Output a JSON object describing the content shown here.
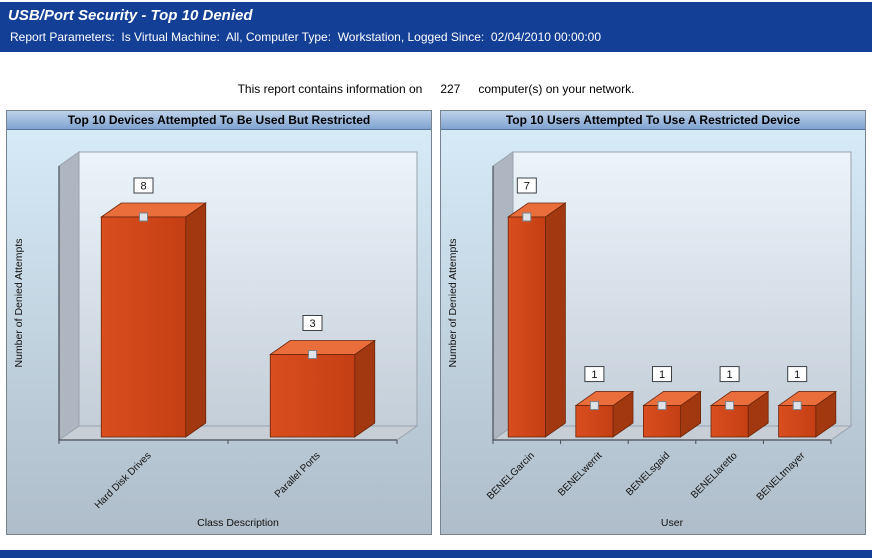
{
  "header": {
    "title": "USB/Port Security - Top 10 Denied",
    "parameters": "Report Parameters:  Is Virtual Machine:  All, Computer Type:  Workstation, Logged Since:  02/04/2010 00:00:00"
  },
  "summary": {
    "prefix": "This report contains information on",
    "count": "227",
    "suffix": "computer(s) on your network."
  },
  "colors": {
    "header_bg": "#143f96",
    "panel_title_from": "#bdd2ea",
    "panel_title_to": "#7fa3d0",
    "bar_front": "#d94e1f",
    "bar_front2": "#c43f14",
    "bar_top": "#ea6e3c",
    "bar_side": "#a2380f",
    "bar_edge": "#6b250b"
  },
  "chart_data": [
    {
      "type": "bar",
      "title": "Top 10 Devices Attempted To Be Used But Restricted",
      "categories": [
        "Hard Disk Drives",
        "Parallel Ports"
      ],
      "values": [
        8,
        3
      ],
      "xlabel": "Class Description",
      "ylabel": "Number of Denied Attempts",
      "ylim": [
        0,
        8
      ],
      "legend": "none",
      "grid": "off"
    },
    {
      "type": "bar",
      "title": "Top 10 Users Attempted To Use A Restricted Device",
      "categories": [
        "BENELGarcin",
        "BENELwerrit",
        "BENELsgaid",
        "BENELlaretto",
        "BENELtmayer"
      ],
      "values": [
        7,
        1,
        1,
        1,
        1
      ],
      "xlabel": "User",
      "ylabel": "Number of Denied Attempts",
      "ylim": [
        0,
        7
      ],
      "legend": "none",
      "grid": "off"
    }
  ]
}
